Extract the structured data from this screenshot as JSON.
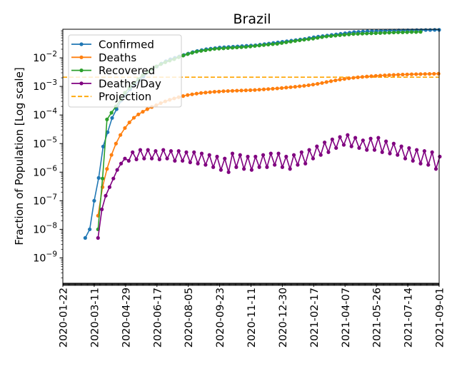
{
  "chart_data": {
    "type": "line",
    "title": "Brazil",
    "xlabel": "",
    "ylabel": "Fraction of Population [Log scale]",
    "yscale": "log",
    "ylim": [
      1.3e-10,
      0.1
    ],
    "xlim": [
      "2020-01-22",
      "2021-09-01"
    ],
    "x_ticks": [
      "2020-01-22",
      "2020-03-11",
      "2020-04-29",
      "2020-06-17",
      "2020-08-05",
      "2020-09-23",
      "2020-11-11",
      "2020-12-30",
      "2021-02-17",
      "2021-04-07",
      "2021-05-26",
      "2021-07-14",
      "2021-09-01"
    ],
    "y_ticks": [
      {
        "base": "10",
        "exp": "−2",
        "value": 0.01
      },
      {
        "base": "10",
        "exp": "−3",
        "value": 0.001
      },
      {
        "base": "10",
        "exp": "−4",
        "value": 0.0001
      },
      {
        "base": "10",
        "exp": "−5",
        "value": 1e-05
      },
      {
        "base": "10",
        "exp": "−6",
        "value": 1e-06
      },
      {
        "base": "10",
        "exp": "−7",
        "value": 1e-07
      },
      {
        "base": "10",
        "exp": "−8",
        "value": 1e-08
      },
      {
        "base": "10",
        "exp": "−9",
        "value": 1e-09
      }
    ],
    "legend_position": "top-left",
    "grid": false,
    "series": [
      {
        "name": "Confirmed",
        "color": "#1f77b4",
        "start_date": "2020-02-26",
        "step_days": 7,
        "values": [
          5e-09,
          1e-08,
          1e-07,
          6.3e-07,
          7.9e-06,
          2.5e-05,
          7.9e-05,
          0.00016,
          0.00032,
          0.0005,
          0.00079,
          0.0011,
          0.0016,
          0.0022,
          0.0032,
          0.004,
          0.005,
          0.0063,
          0.0076,
          0.0089,
          0.01,
          0.0112,
          0.0126,
          0.0141,
          0.0158,
          0.0174,
          0.0186,
          0.02,
          0.0209,
          0.0219,
          0.0229,
          0.0234,
          0.024,
          0.0245,
          0.0251,
          0.0257,
          0.0263,
          0.0269,
          0.0275,
          0.0288,
          0.0302,
          0.0316,
          0.0331,
          0.0347,
          0.0363,
          0.038,
          0.0398,
          0.0417,
          0.0437,
          0.0457,
          0.049,
          0.0525,
          0.055,
          0.0575,
          0.0603,
          0.0631,
          0.066,
          0.0692,
          0.0724,
          0.0759,
          0.0794,
          0.081,
          0.083,
          0.085,
          0.086,
          0.087,
          0.088,
          0.089,
          0.09,
          0.09,
          0.091,
          0.091,
          0.092,
          0.092,
          0.093,
          0.093,
          0.094,
          0.094,
          0.095,
          0.095
        ]
      },
      {
        "name": "Deaths",
        "color": "#ff7f0e",
        "start_date": "2020-03-17",
        "step_days": 7,
        "values": [
          3e-08,
          3e-07,
          1.3e-06,
          4e-06,
          1e-05,
          2e-05,
          3.5e-05,
          5.5e-05,
          8e-05,
          0.000105,
          0.00013,
          0.00016,
          0.00019,
          0.00022,
          0.00026,
          0.0003,
          0.00034,
          0.00038,
          0.00042,
          0.00046,
          0.0005,
          0.00053,
          0.00056,
          0.00059,
          0.00061,
          0.00063,
          0.00065,
          0.00066,
          0.00068,
          0.00069,
          0.0007,
          0.00071,
          0.00072,
          0.00073,
          0.00074,
          0.00075,
          0.00077,
          0.00079,
          0.00081,
          0.00083,
          0.00085,
          0.00088,
          0.00091,
          0.00094,
          0.00097,
          0.00101,
          0.00105,
          0.0011,
          0.00116,
          0.00123,
          0.00132,
          0.00142,
          0.00153,
          0.00163,
          0.00173,
          0.00183,
          0.00192,
          0.002,
          0.00208,
          0.00215,
          0.00222,
          0.00228,
          0.00234,
          0.00239,
          0.00244,
          0.00249,
          0.00253,
          0.00257,
          0.0026,
          0.00263,
          0.00266,
          0.00268,
          0.0027,
          0.00272,
          0.00274,
          0.00276,
          0.00278
        ]
      },
      {
        "name": "Recovered",
        "color": "#2ca02c",
        "start_date": "2020-03-17",
        "step_days": 7,
        "values": [
          1e-08,
          6e-07,
          7e-05,
          0.00012,
          0.0002,
          0.00035,
          0.0006,
          0.0009,
          0.0013,
          0.0018,
          0.0025,
          0.0032,
          0.004,
          0.005,
          0.006,
          0.007,
          0.008,
          0.009,
          0.0105,
          0.012,
          0.0135,
          0.015,
          0.0165,
          0.0175,
          0.0185,
          0.0195,
          0.0205,
          0.021,
          0.0215,
          0.022,
          0.0225,
          0.023,
          0.0235,
          0.024,
          0.025,
          0.026,
          0.027,
          0.028,
          0.029,
          0.03,
          0.031,
          0.033,
          0.035,
          0.037,
          0.039,
          0.041,
          0.043,
          0.045,
          0.047,
          0.05,
          0.053,
          0.056,
          0.058,
          0.06,
          0.062,
          0.064,
          0.066,
          0.068,
          0.069,
          0.07,
          0.071,
          0.072,
          0.073,
          0.074,
          0.075,
          0.076,
          0.077,
          0.078,
          0.078,
          0.079,
          0.08,
          0.08,
          0.081
        ]
      },
      {
        "name": "Deaths/Day",
        "color": "#800080",
        "start_date": "2020-03-17",
        "step_days": 6,
        "values": [
          5e-09,
          5e-08,
          1.5e-07,
          3e-07,
          6e-07,
          1.2e-06,
          2e-06,
          3e-06,
          2.5e-06,
          5e-06,
          2.8e-06,
          6e-06,
          3e-06,
          6e-06,
          3e-06,
          5.5e-06,
          2.8e-06,
          6e-06,
          3e-06,
          5.5e-06,
          2.5e-06,
          5.5e-06,
          2.5e-06,
          5e-06,
          2.2e-06,
          5e-06,
          2e-06,
          4.5e-06,
          1.8e-06,
          4e-06,
          1.5e-06,
          3.5e-06,
          1.2e-06,
          3e-06,
          1e-06,
          4.5e-06,
          1.5e-06,
          4e-06,
          1.3e-06,
          3.5e-06,
          1.2e-06,
          3.5e-06,
          1.5e-06,
          4e-06,
          1.5e-06,
          4.5e-06,
          1.8e-06,
          4.5e-06,
          1.5e-06,
          3.5e-06,
          1.3e-06,
          4e-06,
          1.8e-06,
          5e-06,
          2e-06,
          6e-06,
          3e-06,
          8e-06,
          4e-06,
          1.1e-05,
          5e-06,
          1.4e-05,
          7e-06,
          1.7e-05,
          9e-06,
          2e-05,
          8e-06,
          1.6e-05,
          7e-06,
          1.3e-05,
          6e-06,
          1.5e-05,
          6e-06,
          1.6e-05,
          5e-06,
          1.2e-05,
          4.5e-06,
          1e-05,
          4e-06,
          8e-06,
          3e-06,
          7e-06,
          2.5e-06,
          6e-06,
          2e-06,
          5.5e-06,
          1.8e-06,
          5e-06,
          1.3e-06,
          3.5e-06
        ]
      }
    ],
    "projection": {
      "name": "Projection",
      "color": "#ffa500",
      "value": 0.0021
    }
  }
}
